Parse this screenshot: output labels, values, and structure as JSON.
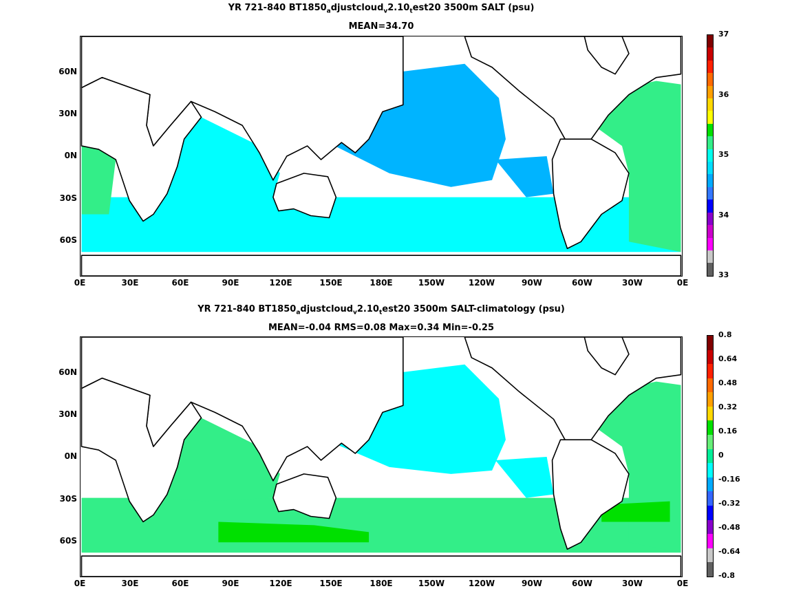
{
  "panels": [
    {
      "title_line1": [
        "YR 721-840 BT1850",
        "a",
        "djustcloud",
        "v",
        "2.10",
        "t",
        "est20 3500m SALT (psu)"
      ],
      "title_line2": "MEAN=34.70",
      "y_ticks": [
        "60N",
        "30N",
        "0N",
        "30S",
        "60S"
      ],
      "x_ticks": [
        "0E",
        "30E",
        "60E",
        "90E",
        "120E",
        "150E",
        "180E",
        "150W",
        "120W",
        "90W",
        "60W",
        "30W",
        "0E"
      ],
      "colorbar": {
        "labels": [
          "37",
          "36",
          "35",
          "34",
          "33"
        ],
        "colors": [
          "#800000",
          "#c80000",
          "#ff2000",
          "#ff6a00",
          "#ffa000",
          "#ffd800",
          "#ffff00",
          "#00e000",
          "#33ee88",
          "#00ffee",
          "#00ddff",
          "#00aaff",
          "#3377ff",
          "#0000ff",
          "#8800cc",
          "#cc00cc",
          "#ff00ff",
          "#c8c8c8",
          "#606060"
        ]
      },
      "fill_primary": "#00b4ff",
      "fill_secondary": "#00ffff",
      "fill_tertiary": "#33ee88"
    },
    {
      "title_line1": [
        "YR 721-840 BT1850",
        "a",
        "djustcloud",
        "v",
        "2.10",
        "t",
        "est20 3500m SALT-climatology (psu)"
      ],
      "title_line2": "MEAN=-0.04   RMS=0.08   Max=0.34   Min=-0.25",
      "y_ticks": [
        "60N",
        "30N",
        "0N",
        "30S",
        "60S"
      ],
      "x_ticks": [
        "0E",
        "30E",
        "60E",
        "90E",
        "120E",
        "150E",
        "180E",
        "150W",
        "120W",
        "90W",
        "60W",
        "30W",
        "0E"
      ],
      "colorbar": {
        "labels": [
          "0.8",
          "0.64",
          "0.48",
          "0.32",
          "0.16",
          "0",
          "-0.16",
          "-0.32",
          "-0.48",
          "-0.64",
          "-0.8"
        ],
        "colors": [
          "#800000",
          "#c80000",
          "#ff2000",
          "#ff6a00",
          "#ffa000",
          "#ffd800",
          "#00e000",
          "#66ee77",
          "#00ee99",
          "#00ffff",
          "#00aaff",
          "#3366ff",
          "#0000ff",
          "#8800cc",
          "#ff00ff",
          "#c8c8c8",
          "#606060"
        ]
      },
      "fill_primary": "#00ffff",
      "fill_secondary": "#33ee88",
      "fill_tertiary": "#00e000"
    }
  ]
}
